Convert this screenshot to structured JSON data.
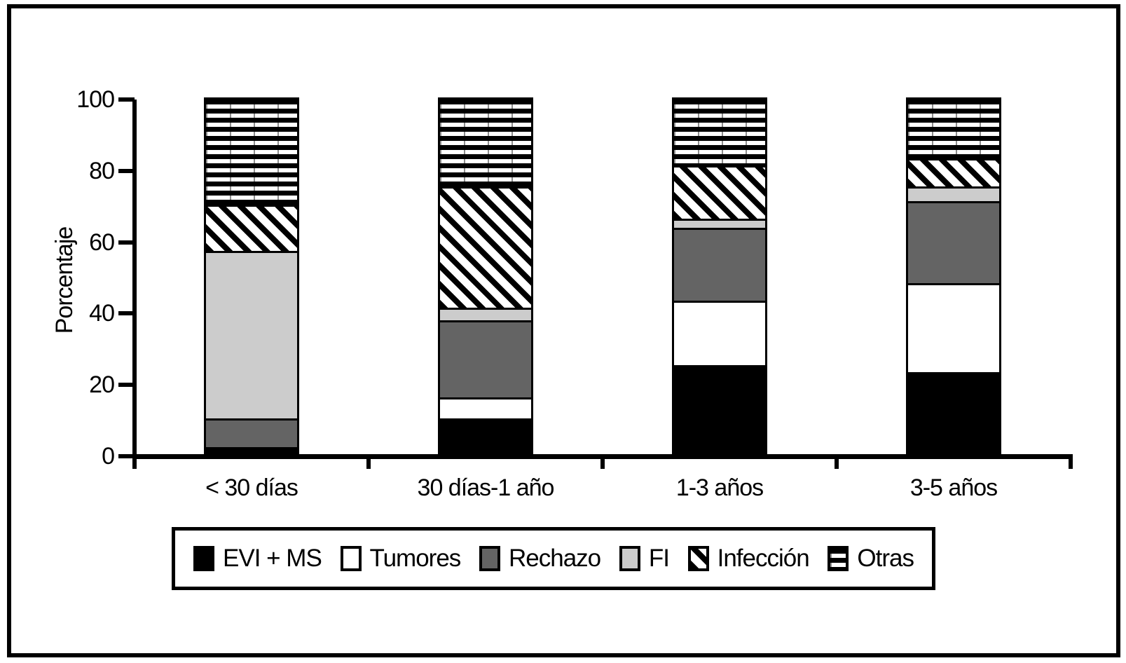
{
  "figure": {
    "background": "#ffffff",
    "frame_border_color": "#000000"
  },
  "chart_data": {
    "type": "bar",
    "stacked": true,
    "title": "",
    "xlabel": "",
    "ylabel": "Porcentaje",
    "ylim": [
      0,
      100
    ],
    "yticks": [
      0,
      20,
      40,
      60,
      80,
      100
    ],
    "grid": false,
    "categories": [
      "< 30 días",
      "30 días-1 año",
      "1-3 años",
      "3-5 años"
    ],
    "series": [
      {
        "name": "EVI + MS",
        "pattern": "solid-black",
        "values": [
          2,
          10,
          25,
          23
        ]
      },
      {
        "name": "Tumores",
        "pattern": "solid-white",
        "values": [
          0,
          6,
          18,
          25
        ]
      },
      {
        "name": "Rechazo",
        "pattern": "solid-darkgray",
        "values": [
          8,
          21.5,
          20.5,
          23
        ]
      },
      {
        "name": "FI",
        "pattern": "solid-lightgray",
        "values": [
          47,
          3.5,
          2.5,
          4
        ]
      },
      {
        "name": "Infección",
        "pattern": "diagonal-hatch",
        "values": [
          13,
          34,
          15,
          8
        ]
      },
      {
        "name": "Otras",
        "pattern": "horizontal-lines",
        "values": [
          30,
          25,
          19,
          17
        ]
      }
    ],
    "legend": {
      "position": "bottom",
      "labels": [
        "EVI + MS",
        "Tumores",
        "Rechazo",
        "FI",
        "Infección",
        "Otras"
      ]
    },
    "colors": {
      "black": "#000000",
      "white": "#ffffff",
      "darkgray": "#646464",
      "lightgray": "#cccccc",
      "axis": "#000000"
    }
  }
}
